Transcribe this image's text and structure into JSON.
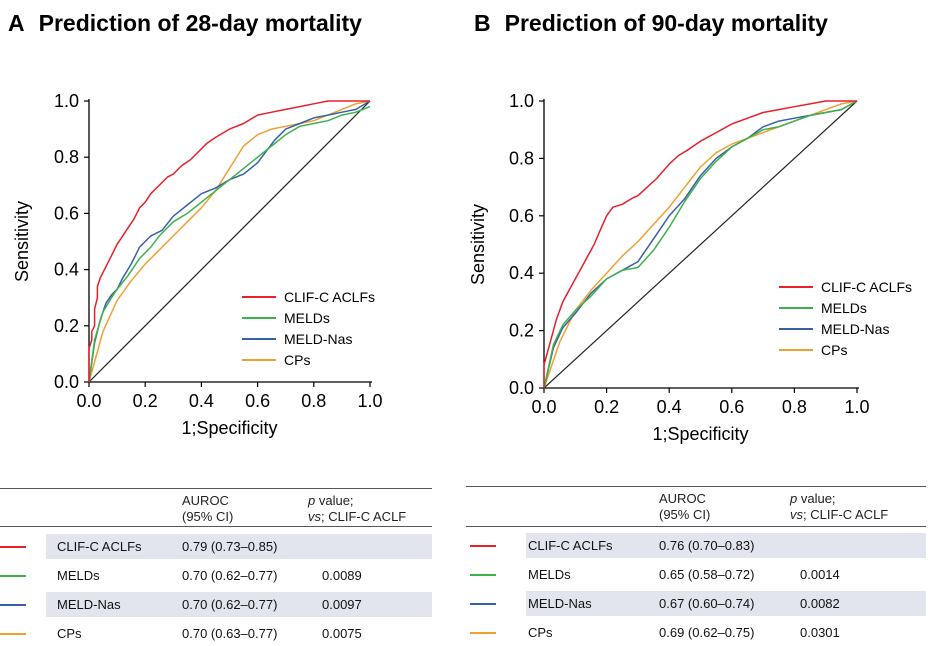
{
  "colors": {
    "CLIF-C ACLFs": "#e8202a",
    "MELDs": "#3cb34a",
    "MELD-Nas": "#3a5fa8",
    "CPs": "#f0a030",
    "reference": "#222222"
  },
  "table_header": {
    "auroc_line1": "AUROC",
    "auroc_line2": "(95% CI)",
    "p_line1_italic": "p",
    "p_line1_rest": " value;",
    "p_line2_italic": "vs",
    "p_line2_rest": "; CLIF-C ACLF"
  },
  "chart_data": [
    {
      "type": "line",
      "panel_letter": "A",
      "title": "Prediction of 28-day mortality",
      "xlabel": "1;Specificity",
      "ylabel": "Sensitivity",
      "xlim": [
        0,
        1
      ],
      "ylim": [
        0,
        1
      ],
      "xticks": [
        "0.0",
        "0.2",
        "0.4",
        "0.6",
        "0.8",
        "1.0"
      ],
      "yticks": [
        "0.0",
        "0.2",
        "0.4",
        "0.6",
        "0.8",
        "1.0"
      ],
      "grid": false,
      "legend_position": "lower-right",
      "reference_line": [
        [
          0,
          0
        ],
        [
          1,
          1
        ]
      ],
      "series": [
        {
          "name": "CLIF-C ACLFs",
          "x": [
            0,
            0,
            0.01,
            0.01,
            0.02,
            0.02,
            0.03,
            0.03,
            0.04,
            0.05,
            0.06,
            0.07,
            0.08,
            0.1,
            0.12,
            0.14,
            0.16,
            0.18,
            0.2,
            0.22,
            0.24,
            0.26,
            0.28,
            0.3,
            0.33,
            0.36,
            0.38,
            0.4,
            0.42,
            0.45,
            0.5,
            0.55,
            0.6,
            0.65,
            0.7,
            0.75,
            0.8,
            0.85,
            0.9,
            0.95,
            1
          ],
          "y": [
            0,
            0.12,
            0.15,
            0.18,
            0.2,
            0.26,
            0.3,
            0.34,
            0.37,
            0.39,
            0.41,
            0.43,
            0.45,
            0.49,
            0.52,
            0.55,
            0.58,
            0.62,
            0.64,
            0.67,
            0.69,
            0.71,
            0.73,
            0.74,
            0.77,
            0.79,
            0.81,
            0.83,
            0.85,
            0.87,
            0.9,
            0.92,
            0.95,
            0.96,
            0.97,
            0.98,
            0.99,
            1,
            1,
            1,
            1
          ]
        },
        {
          "name": "MELDs",
          "x": [
            0,
            0.02,
            0.05,
            0.08,
            0.1,
            0.14,
            0.18,
            0.22,
            0.25,
            0.3,
            0.35,
            0.4,
            0.45,
            0.5,
            0.55,
            0.6,
            0.65,
            0.7,
            0.75,
            0.8,
            0.85,
            0.9,
            0.95,
            1
          ],
          "y": [
            0,
            0.15,
            0.25,
            0.3,
            0.33,
            0.38,
            0.44,
            0.48,
            0.52,
            0.57,
            0.6,
            0.64,
            0.68,
            0.72,
            0.76,
            0.8,
            0.84,
            0.88,
            0.91,
            0.92,
            0.93,
            0.95,
            0.96,
            0.98
          ]
        },
        {
          "name": "MELD-Nas",
          "x": [
            0,
            0.02,
            0.04,
            0.06,
            0.08,
            0.1,
            0.12,
            0.15,
            0.18,
            0.22,
            0.26,
            0.3,
            0.35,
            0.4,
            0.45,
            0.5,
            0.55,
            0.6,
            0.63,
            0.66,
            0.7,
            0.75,
            0.8,
            0.85,
            0.9,
            0.95,
            1
          ],
          "y": [
            0,
            0.14,
            0.22,
            0.28,
            0.31,
            0.33,
            0.37,
            0.42,
            0.48,
            0.52,
            0.54,
            0.59,
            0.63,
            0.67,
            0.69,
            0.72,
            0.74,
            0.78,
            0.82,
            0.86,
            0.9,
            0.92,
            0.94,
            0.95,
            0.96,
            0.97,
            1
          ]
        },
        {
          "name": "CPs",
          "x": [
            0,
            0.05,
            0.1,
            0.15,
            0.2,
            0.25,
            0.3,
            0.35,
            0.4,
            0.45,
            0.5,
            0.55,
            0.6,
            0.65,
            0.7,
            0.75,
            0.8,
            0.85,
            0.9,
            0.95,
            1
          ],
          "y": [
            0,
            0.18,
            0.29,
            0.36,
            0.42,
            0.47,
            0.52,
            0.57,
            0.62,
            0.68,
            0.76,
            0.84,
            0.88,
            0.9,
            0.91,
            0.92,
            0.93,
            0.95,
            0.97,
            0.99,
            1
          ]
        }
      ],
      "table": [
        {
          "model": "CLIF-C ACLFs",
          "auroc": "0.79 (0.73–0.85)",
          "p": ""
        },
        {
          "model": "MELDs",
          "auroc": "0.70 (0.62–0.77)",
          "p": "0.0089"
        },
        {
          "model": "MELD-Nas",
          "auroc": "0.70 (0.62–0.77)",
          "p": "0.0097"
        },
        {
          "model": "CPs",
          "auroc": "0.70 (0.63–0.77)",
          "p": "0.0075"
        }
      ]
    },
    {
      "type": "line",
      "panel_letter": "B",
      "title": "Prediction of 90-day mortality",
      "xlabel": "1;Specificity",
      "ylabel": "Sensitivity",
      "xlim": [
        0,
        1
      ],
      "ylim": [
        0,
        1
      ],
      "xticks": [
        "0.0",
        "0.2",
        "0.4",
        "0.6",
        "0.8",
        "1.0"
      ],
      "yticks": [
        "0.0",
        "0.2",
        "0.4",
        "0.6",
        "0.8",
        "1.0"
      ],
      "grid": false,
      "legend_position": "right",
      "reference_line": [
        [
          0,
          0
        ],
        [
          1,
          1
        ]
      ],
      "series": [
        {
          "name": "CLIF-C ACLFs",
          "x": [
            0,
            0,
            0.01,
            0.02,
            0.03,
            0.04,
            0.05,
            0.06,
            0.08,
            0.1,
            0.12,
            0.14,
            0.16,
            0.18,
            0.2,
            0.22,
            0.25,
            0.28,
            0.3,
            0.33,
            0.36,
            0.4,
            0.43,
            0.46,
            0.5,
            0.55,
            0.6,
            0.65,
            0.7,
            0.75,
            0.8,
            0.85,
            0.9,
            0.95,
            1
          ],
          "y": [
            0,
            0.08,
            0.12,
            0.16,
            0.2,
            0.24,
            0.27,
            0.3,
            0.34,
            0.38,
            0.42,
            0.46,
            0.5,
            0.55,
            0.6,
            0.63,
            0.64,
            0.66,
            0.67,
            0.7,
            0.73,
            0.78,
            0.81,
            0.83,
            0.86,
            0.89,
            0.92,
            0.94,
            0.96,
            0.97,
            0.98,
            0.99,
            1,
            1,
            1
          ]
        },
        {
          "name": "MELDs",
          "x": [
            0,
            0.03,
            0.06,
            0.1,
            0.15,
            0.2,
            0.25,
            0.3,
            0.35,
            0.4,
            0.45,
            0.5,
            0.55,
            0.6,
            0.65,
            0.7,
            0.75,
            0.8,
            0.85,
            0.9,
            0.95,
            1
          ],
          "y": [
            0,
            0.15,
            0.22,
            0.27,
            0.32,
            0.38,
            0.41,
            0.42,
            0.48,
            0.56,
            0.65,
            0.73,
            0.79,
            0.84,
            0.87,
            0.9,
            0.91,
            0.93,
            0.95,
            0.96,
            0.97,
            1
          ]
        },
        {
          "name": "MELD-Nas",
          "x": [
            0,
            0.03,
            0.06,
            0.1,
            0.15,
            0.2,
            0.25,
            0.3,
            0.35,
            0.4,
            0.45,
            0.5,
            0.55,
            0.6,
            0.65,
            0.7,
            0.75,
            0.8,
            0.85,
            0.9,
            0.95,
            1
          ],
          "y": [
            0,
            0.14,
            0.21,
            0.26,
            0.33,
            0.38,
            0.41,
            0.44,
            0.52,
            0.6,
            0.66,
            0.74,
            0.8,
            0.84,
            0.87,
            0.91,
            0.93,
            0.94,
            0.95,
            0.96,
            0.97,
            1
          ]
        },
        {
          "name": "CPs",
          "x": [
            0,
            0.05,
            0.1,
            0.15,
            0.2,
            0.25,
            0.3,
            0.35,
            0.4,
            0.45,
            0.5,
            0.55,
            0.6,
            0.65,
            0.7,
            0.75,
            0.8,
            0.85,
            0.9,
            0.95,
            1
          ],
          "y": [
            0,
            0.16,
            0.27,
            0.34,
            0.4,
            0.46,
            0.51,
            0.57,
            0.63,
            0.7,
            0.77,
            0.82,
            0.85,
            0.87,
            0.89,
            0.91,
            0.93,
            0.95,
            0.97,
            0.99,
            1
          ]
        }
      ],
      "table": [
        {
          "model": "CLIF-C ACLFs",
          "auroc": "0.76 (0.70–0.83)",
          "p": ""
        },
        {
          "model": "MELDs",
          "auroc": "0.65 (0.58–0.72)",
          "p": "0.0014"
        },
        {
          "model": "MELD-Nas",
          "auroc": "0.67 (0.60–0.74)",
          "p": "0.0082"
        },
        {
          "model": "CPs",
          "auroc": "0.69 (0.62–0.75)",
          "p": "0.0301"
        }
      ]
    }
  ]
}
